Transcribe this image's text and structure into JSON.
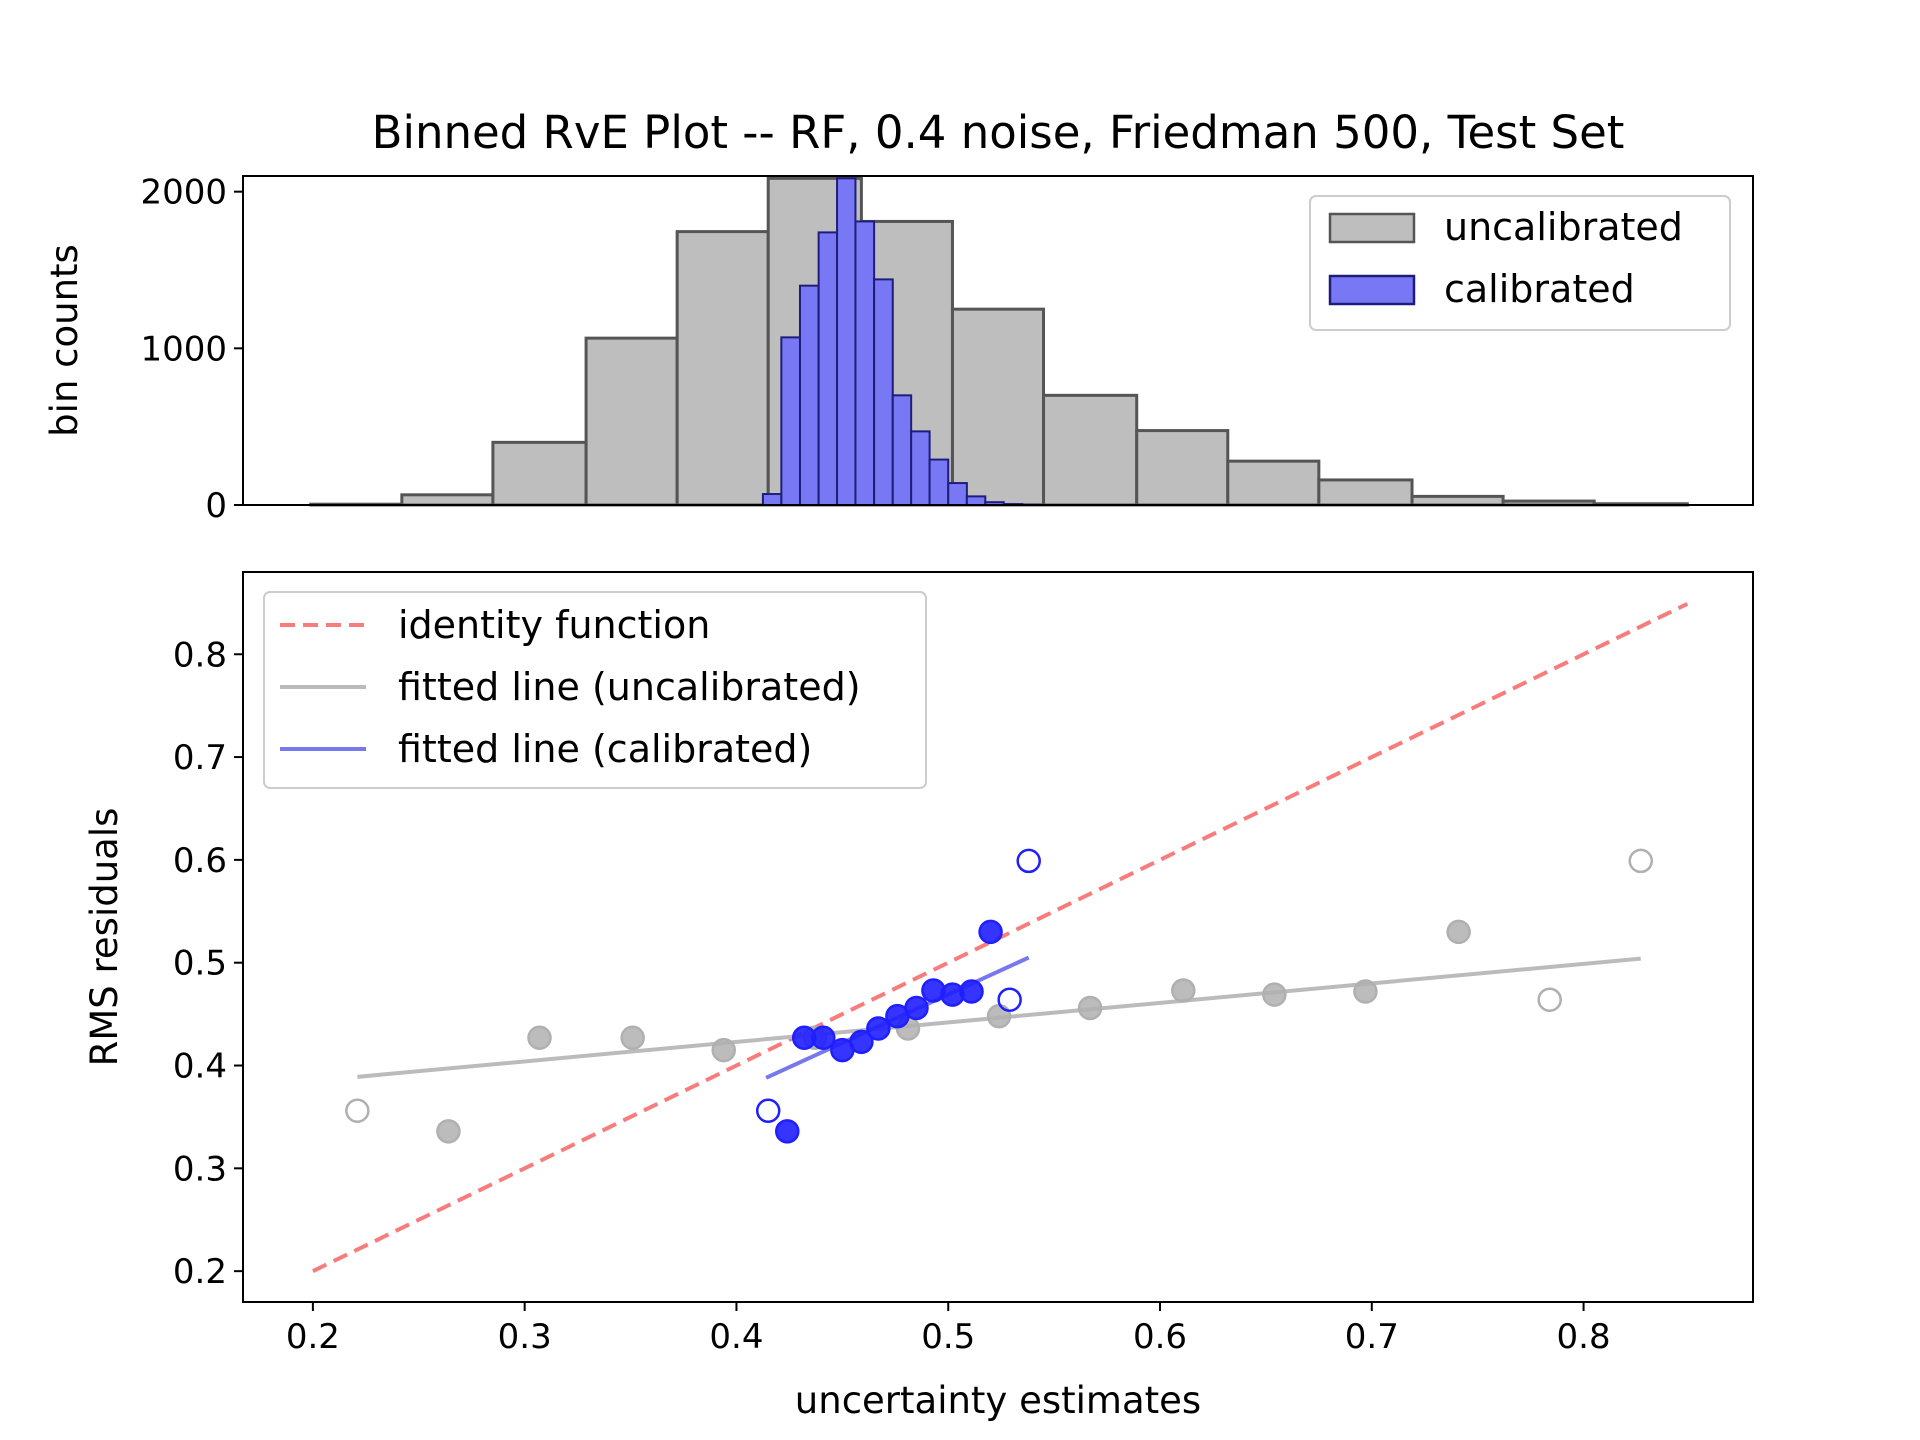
{
  "chart_data": [
    {
      "type": "bar",
      "title": "Binned RvE Plot -- RF, 0.4 noise, Friedman 500, Test Set",
      "xlabel": "",
      "ylabel": "bin counts",
      "xlim": [
        0.167,
        0.88
      ],
      "ylim": [
        0,
        2100
      ],
      "yticks": [
        "0",
        "1000",
        "2000"
      ],
      "legend": {
        "position": "top-right",
        "entries": [
          "uncalibrated",
          "calibrated"
        ]
      },
      "series": [
        {
          "name": "uncalibrated",
          "color": "#bebebe",
          "edge_color": "#555555",
          "bin_edges": [
            0.199,
            0.242,
            0.285,
            0.329,
            0.372,
            0.415,
            0.459,
            0.502,
            0.545,
            0.589,
            0.632,
            0.675,
            0.719,
            0.762,
            0.805,
            0.849
          ],
          "counts": [
            5,
            65,
            400,
            1065,
            1745,
            2085,
            1810,
            1250,
            700,
            475,
            280,
            160,
            55,
            25,
            8
          ]
        },
        {
          "name": "calibrated",
          "color": "#7878f5",
          "edge_color": "#1e1e7a",
          "bin_edges": [
            0.4125,
            0.4212,
            0.43,
            0.4388,
            0.4475,
            0.4562,
            0.465,
            0.4738,
            0.4825,
            0.4912,
            0.5,
            0.5088,
            0.5175,
            0.5262,
            0.535,
            0.5437
          ],
          "counts": [
            70,
            1070,
            1400,
            1740,
            2085,
            1810,
            1440,
            700,
            470,
            290,
            140,
            55,
            18,
            6,
            3
          ]
        }
      ]
    },
    {
      "type": "scatter",
      "title": "",
      "xlabel": "uncertainty estimates",
      "ylabel": "RMS residuals",
      "xlim": [
        0.167,
        0.88
      ],
      "ylim": [
        0.17,
        0.88
      ],
      "xticks": [
        "0.2",
        "0.3",
        "0.4",
        "0.5",
        "0.6",
        "0.7",
        "0.8"
      ],
      "yticks": [
        "0.2",
        "0.3",
        "0.4",
        "0.5",
        "0.6",
        "0.7",
        "0.8"
      ],
      "legend": {
        "position": "top-left",
        "entries": [
          "identity function",
          "fitted line (uncalibrated)",
          "fitted line (calibrated)"
        ]
      },
      "lines": [
        {
          "name": "identity function",
          "color": "#f87c7c",
          "dashed": true,
          "x": [
            0.2,
            0.849
          ],
          "y": [
            0.2,
            0.849
          ]
        },
        {
          "name": "fitted line (uncalibrated)",
          "color": "#bbbbbb",
          "dashed": false,
          "x": [
            0.221,
            0.827
          ],
          "y": [
            0.389,
            0.504
          ]
        },
        {
          "name": "fitted line (calibrated)",
          "color": "#7777ee",
          "dashed": false,
          "x": [
            0.414,
            0.538
          ],
          "y": [
            0.388,
            0.505
          ]
        }
      ],
      "series": [
        {
          "name": "uncalibrated",
          "color": "#b0b0b0",
          "x": [
            0.221,
            0.264,
            0.307,
            0.351,
            0.394,
            0.437,
            0.481,
            0.524,
            0.567,
            0.611,
            0.654,
            0.697,
            0.741,
            0.784,
            0.827
          ],
          "y": [
            0.356,
            0.336,
            0.427,
            0.427,
            0.415,
            0.427,
            0.436,
            0.448,
            0.456,
            0.473,
            0.469,
            0.472,
            0.53,
            0.464,
            0.599
          ],
          "hollow": [
            true,
            false,
            false,
            false,
            false,
            false,
            false,
            false,
            false,
            false,
            false,
            false,
            false,
            true,
            true
          ]
        },
        {
          "name": "calibrated",
          "color": "#1f1fff",
          "x": [
            0.415,
            0.424,
            0.432,
            0.441,
            0.45,
            0.459,
            0.467,
            0.476,
            0.485,
            0.493,
            0.502,
            0.511,
            0.52,
            0.529,
            0.538
          ],
          "y": [
            0.356,
            0.336,
            0.427,
            0.427,
            0.415,
            0.423,
            0.436,
            0.448,
            0.456,
            0.473,
            0.469,
            0.472,
            0.53,
            0.464,
            0.599
          ],
          "hollow": [
            true,
            false,
            false,
            false,
            false,
            false,
            false,
            false,
            false,
            false,
            false,
            false,
            false,
            true,
            true
          ]
        }
      ]
    }
  ]
}
